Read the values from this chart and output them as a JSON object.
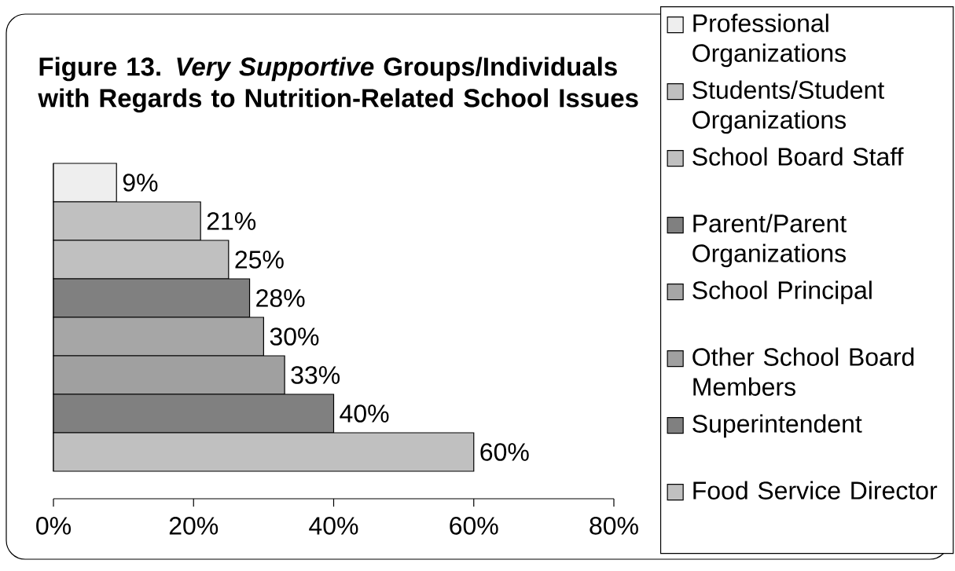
{
  "chart_data": {
    "type": "bar",
    "orientation": "horizontal",
    "title": "Figure 13.  *Very Supportive* Groups/Individuals with Regards to Nutrition-Related School Issues",
    "categories": [
      null,
      null,
      null,
      null,
      null,
      null,
      null,
      null
    ],
    "series": [
      {
        "name": "Professional Organizations",
        "color": "#eeeeee",
        "values": [
          9,
          null,
          null,
          null,
          null,
          null,
          null,
          null
        ],
        "value_labels": [
          "9%",
          null,
          null,
          null,
          null,
          null,
          null,
          null
        ]
      },
      {
        "name": "Students/Student Organizations",
        "color": "#c0c0c0",
        "values": [
          null,
          21,
          null,
          null,
          null,
          null,
          null,
          null
        ],
        "value_labels": [
          null,
          "21%",
          null,
          null,
          null,
          null,
          null,
          null
        ]
      },
      {
        "name": "School Board Staff",
        "color": "#c0c0c0",
        "values": [
          null,
          null,
          25,
          null,
          null,
          null,
          null,
          null
        ],
        "value_labels": [
          null,
          null,
          "25%",
          null,
          null,
          null,
          null,
          null
        ]
      },
      {
        "name": "Parent/Parent Organizations",
        "color": "#808080",
        "values": [
          null,
          null,
          null,
          28,
          null,
          null,
          null,
          null
        ],
        "value_labels": [
          null,
          null,
          null,
          "28%",
          null,
          null,
          null,
          null
        ]
      },
      {
        "name": "School Principal",
        "color": "#a6a6a6",
        "values": [
          null,
          null,
          null,
          null,
          30,
          null,
          null,
          null
        ],
        "value_labels": [
          null,
          null,
          null,
          null,
          "30%",
          null,
          null,
          null
        ]
      },
      {
        "name": "Other School Board Members",
        "color": "#a0a0a0",
        "values": [
          null,
          null,
          null,
          null,
          null,
          33,
          null,
          null
        ],
        "value_labels": [
          null,
          null,
          null,
          null,
          null,
          "33%",
          null,
          null
        ]
      },
      {
        "name": "Superintendent",
        "color": "#808080",
        "values": [
          null,
          null,
          null,
          null,
          null,
          null,
          40,
          null
        ],
        "value_labels": [
          null,
          null,
          null,
          null,
          null,
          null,
          "40%",
          null
        ]
      },
      {
        "name": "Food Service Director",
        "color": "#c0c0c0",
        "values": [
          null,
          null,
          null,
          null,
          null,
          null,
          null,
          60
        ],
        "value_labels": [
          null,
          null,
          null,
          null,
          null,
          null,
          null,
          "60%"
        ]
      }
    ],
    "xlim": [
      0,
      80
    ],
    "xticks": [
      {
        "value": 0,
        "label": "0%"
      },
      {
        "value": 20,
        "label": "20%"
      },
      {
        "value": 40,
        "label": "40%"
      },
      {
        "value": 60,
        "label": "60%"
      },
      {
        "value": 80,
        "label": "80%"
      }
    ],
    "tick_labels": "x",
    "legend": "right"
  }
}
